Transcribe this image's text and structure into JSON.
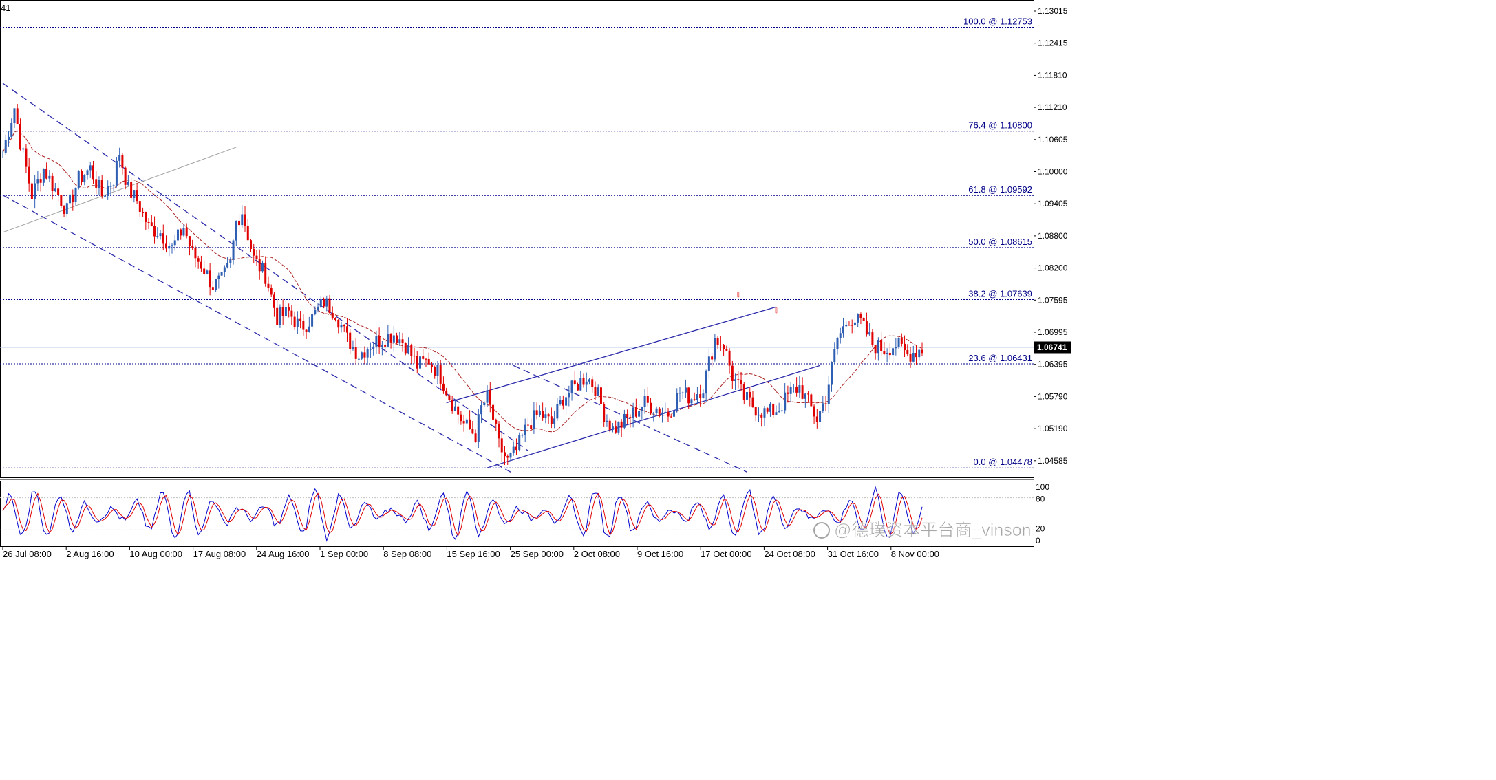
{
  "chart_data": {
    "type": "candlestick",
    "symbol_fragment": "41",
    "price_axis": {
      "ylim": [
        1.043,
        1.1325
      ],
      "tick_labels": [
        "1.13015",
        "1.12415",
        "1.11810",
        "1.11210",
        "1.10605",
        "1.10000",
        "1.09405",
        "1.08800",
        "1.08200",
        "1.07595",
        "1.06995",
        "1.06395",
        "1.05790",
        "1.05190",
        "1.04585"
      ],
      "current_price": "1.06741",
      "current_price_value": 1.06741
    },
    "time_axis": {
      "tick_labels": [
        "26 Jul 08:00",
        "2 Aug 16:00",
        "10 Aug 00:00",
        "17 Aug 08:00",
        "24 Aug 16:00",
        "1 Sep 00:00",
        "8 Sep 08:00",
        "15 Sep 16:00",
        "25 Sep 00:00",
        "2 Oct 08:00",
        "9 Oct 16:00",
        "17 Oct 00:00",
        "24 Oct 08:00",
        "31 Oct 16:00",
        "8 Nov 00:00"
      ]
    },
    "fibonacci_levels": [
      {
        "label": "100.0 @ 1.12753",
        "value": 1.12753
      },
      {
        "label": "76.4 @ 1.10800",
        "value": 1.108
      },
      {
        "label": "61.8 @ 1.09592",
        "value": 1.09592
      },
      {
        "label": "50.0 @ 1.08615",
        "value": 1.08615
      },
      {
        "label": "38.2 @ 1.07639",
        "value": 1.07639
      },
      {
        "label": "23.6 @ 1.06431",
        "value": 1.06431
      },
      {
        "label": "0.0 @ 1.04478",
        "value": 1.04478
      }
    ],
    "price_path_anchors": [
      [
        0,
        1.104
      ],
      [
        4,
        1.1125
      ],
      [
        6,
        1.106
      ],
      [
        10,
        1.096
      ],
      [
        14,
        1.101
      ],
      [
        18,
        1.097
      ],
      [
        22,
        1.093
      ],
      [
        26,
        1.099
      ],
      [
        30,
        1.101
      ],
      [
        34,
        1.096
      ],
      [
        38,
        1.099
      ],
      [
        40,
        1.104
      ],
      [
        43,
        1.097
      ],
      [
        46,
        1.095
      ],
      [
        50,
        1.09
      ],
      [
        54,
        1.089
      ],
      [
        58,
        1.086
      ],
      [
        62,
        1.09
      ],
      [
        65,
        1.085
      ],
      [
        68,
        1.083
      ],
      [
        72,
        1.079
      ],
      [
        75,
        1.08
      ],
      [
        78,
        1.083
      ],
      [
        80,
        1.091
      ],
      [
        82,
        1.093
      ],
      [
        86,
        1.084
      ],
      [
        90,
        1.081
      ],
      [
        94,
        1.073
      ],
      [
        98,
        1.074
      ],
      [
        102,
        1.071
      ],
      [
        106,
        1.073
      ],
      [
        110,
        1.076
      ],
      [
        114,
        1.074
      ],
      [
        118,
        1.069
      ],
      [
        122,
        1.066
      ],
      [
        126,
        1.068
      ],
      [
        130,
        1.069
      ],
      [
        134,
        1.07
      ],
      [
        138,
        1.068
      ],
      [
        142,
        1.064
      ],
      [
        146,
        1.065
      ],
      [
        150,
        1.062
      ],
      [
        154,
        1.057
      ],
      [
        158,
        1.053
      ],
      [
        162,
        1.051
      ],
      [
        164,
        1.056
      ],
      [
        166,
        1.058
      ],
      [
        168,
        1.054
      ],
      [
        170,
        1.049
      ],
      [
        173,
        1.046
      ],
      [
        176,
        1.048
      ],
      [
        180,
        1.053
      ],
      [
        184,
        1.055
      ],
      [
        188,
        1.053
      ],
      [
        192,
        1.058
      ],
      [
        196,
        1.06
      ],
      [
        200,
        1.062
      ],
      [
        203,
        1.06
      ],
      [
        206,
        1.055
      ],
      [
        209,
        1.052
      ],
      [
        212,
        1.053
      ],
      [
        216,
        1.055
      ],
      [
        220,
        1.057
      ],
      [
        224,
        1.056
      ],
      [
        228,
        1.055
      ],
      [
        232,
        1.059
      ],
      [
        236,
        1.058
      ],
      [
        240,
        1.06
      ],
      [
        244,
        1.069
      ],
      [
        247,
        1.068
      ],
      [
        250,
        1.062
      ],
      [
        254,
        1.058
      ],
      [
        258,
        1.056
      ],
      [
        262,
        1.055
      ],
      [
        266,
        1.056
      ],
      [
        270,
        1.059
      ],
      [
        273,
        1.06
      ],
      [
        276,
        1.057
      ],
      [
        279,
        1.054
      ],
      [
        282,
        1.058
      ],
      [
        286,
        1.069
      ],
      [
        290,
        1.073
      ],
      [
        294,
        1.072
      ],
      [
        298,
        1.068
      ],
      [
        302,
        1.067
      ],
      [
        306,
        1.068
      ],
      [
        310,
        1.066
      ],
      [
        314,
        1.067
      ]
    ],
    "channels": [
      {
        "name": "descending-channel-upper",
        "style": "dashed",
        "points": [
          [
            0,
            1.117
          ],
          [
            180,
            1.048
          ]
        ]
      },
      {
        "name": "descending-channel-lower",
        "style": "dashed",
        "points": [
          [
            0,
            1.096
          ],
          [
            174,
            1.044
          ]
        ]
      },
      {
        "name": "descending-channel-extension",
        "style": "dashed",
        "points": [
          [
            175,
            1.064
          ],
          [
            255,
            1.044
          ]
        ]
      },
      {
        "name": "ascending-channel-upper",
        "style": "solid",
        "points": [
          [
            152,
            1.057
          ],
          [
            265,
            1.075
          ]
        ]
      },
      {
        "name": "ascending-channel-lower",
        "style": "solid",
        "points": [
          [
            166,
            1.0448
          ],
          [
            280,
            1.064
          ]
        ]
      },
      {
        "name": "grey-trendline",
        "style": "solid",
        "points": [
          [
            0,
            1.089
          ],
          [
            80,
            1.105
          ]
        ]
      }
    ],
    "markers": [
      {
        "index": 252,
        "price": 1.0768
      },
      {
        "index": 265,
        "price": 1.0738
      }
    ],
    "stochastic": {
      "levels": [
        "100",
        "80",
        "20",
        "0"
      ],
      "k_color": "#0000cc",
      "d_color": "#e00000"
    },
    "colors": {
      "bull": "#2f5fb3",
      "bear": "#e00000",
      "ma": "#aa2222",
      "fib": "#000088",
      "channel": "#2a2aaa",
      "current_line": "#b9cbe8"
    },
    "grid": false,
    "legend": "none"
  },
  "watermark": {
    "text": "@德璞资本平台商_vinson"
  }
}
